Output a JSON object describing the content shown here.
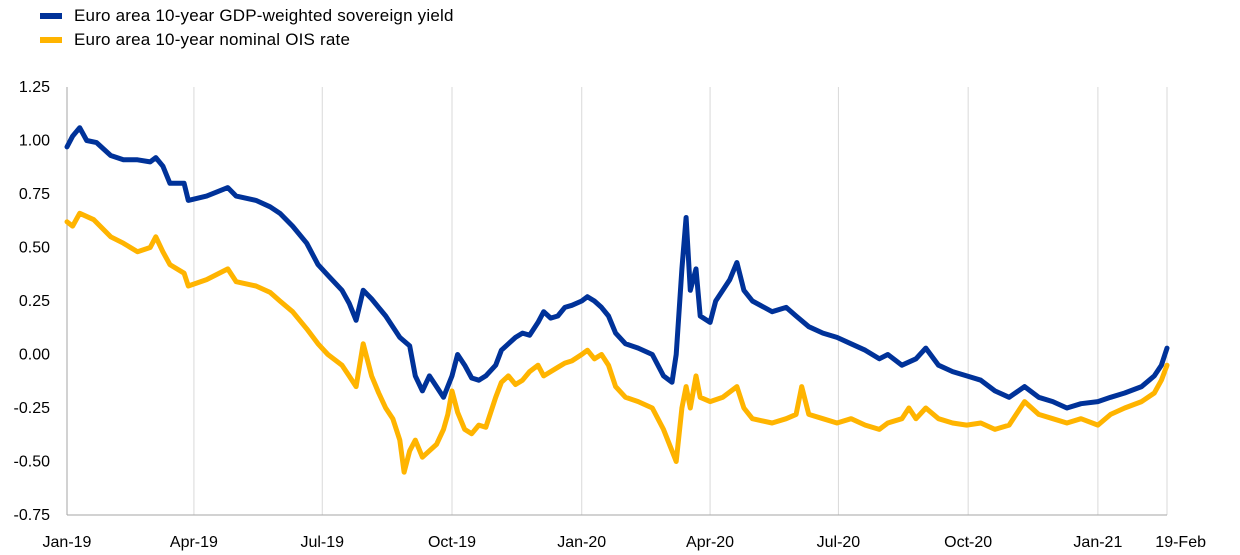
{
  "chart_data": {
    "type": "line",
    "title": "",
    "xlabel": "",
    "ylabel": "",
    "x_tick_labels": [
      {
        "label": "Jan-19",
        "date": "2019-01-01"
      },
      {
        "label": "Apr-19",
        "date": "2019-04-01"
      },
      {
        "label": "Jul-19",
        "date": "2019-07-01"
      },
      {
        "label": "Oct-19",
        "date": "2019-10-01"
      },
      {
        "label": "Jan-20",
        "date": "2020-01-01"
      },
      {
        "label": "Apr-20",
        "date": "2020-04-01"
      },
      {
        "label": "Jul-20",
        "date": "2020-07-01"
      },
      {
        "label": "Oct-20",
        "date": "2020-10-01"
      },
      {
        "label": "Jan-21",
        "date": "2021-01-01"
      },
      {
        "label": "19-Feb",
        "date": "2021-02-19"
      }
    ],
    "y_ticks": [
      "1.25",
      "1.00",
      "0.75",
      "0.50",
      "0.25",
      "0.00",
      "-0.25",
      "-0.50",
      "-0.75"
    ],
    "ylim": [
      -0.75,
      1.25
    ],
    "xlim": [
      "2019-01-01",
      "2021-02-19"
    ],
    "grid": "vertical",
    "legend_position": "top-left",
    "series": [
      {
        "name": "Euro area 10-year GDP-weighted sovereign yield",
        "color": "#003299",
        "points": [
          [
            "2019-01-01",
            0.97
          ],
          [
            "2019-01-05",
            1.02
          ],
          [
            "2019-01-10",
            1.06
          ],
          [
            "2019-01-15",
            1.0
          ],
          [
            "2019-01-22",
            0.99
          ],
          [
            "2019-02-01",
            0.93
          ],
          [
            "2019-02-10",
            0.91
          ],
          [
            "2019-02-20",
            0.91
          ],
          [
            "2019-03-01",
            0.9
          ],
          [
            "2019-03-05",
            0.92
          ],
          [
            "2019-03-10",
            0.88
          ],
          [
            "2019-03-15",
            0.8
          ],
          [
            "2019-03-25",
            0.8
          ],
          [
            "2019-03-28",
            0.72
          ],
          [
            "2019-04-10",
            0.74
          ],
          [
            "2019-04-25",
            0.78
          ],
          [
            "2019-05-01",
            0.74
          ],
          [
            "2019-05-15",
            0.72
          ],
          [
            "2019-05-25",
            0.69
          ],
          [
            "2019-06-01",
            0.66
          ],
          [
            "2019-06-10",
            0.6
          ],
          [
            "2019-06-20",
            0.52
          ],
          [
            "2019-06-28",
            0.42
          ],
          [
            "2019-07-05",
            0.37
          ],
          [
            "2019-07-15",
            0.3
          ],
          [
            "2019-07-20",
            0.24
          ],
          [
            "2019-07-25",
            0.16
          ],
          [
            "2019-07-30",
            0.3
          ],
          [
            "2019-08-05",
            0.26
          ],
          [
            "2019-08-15",
            0.18
          ],
          [
            "2019-08-25",
            0.08
          ],
          [
            "2019-09-01",
            0.04
          ],
          [
            "2019-09-05",
            -0.1
          ],
          [
            "2019-09-10",
            -0.17
          ],
          [
            "2019-09-15",
            -0.1
          ],
          [
            "2019-09-20",
            -0.15
          ],
          [
            "2019-09-25",
            -0.2
          ],
          [
            "2019-10-01",
            -0.1
          ],
          [
            "2019-10-05",
            0.0
          ],
          [
            "2019-10-10",
            -0.05
          ],
          [
            "2019-10-15",
            -0.11
          ],
          [
            "2019-10-20",
            -0.12
          ],
          [
            "2019-10-25",
            -0.1
          ],
          [
            "2019-11-01",
            -0.05
          ],
          [
            "2019-11-05",
            0.02
          ],
          [
            "2019-11-10",
            0.05
          ],
          [
            "2019-11-15",
            0.08
          ],
          [
            "2019-11-20",
            0.1
          ],
          [
            "2019-11-25",
            0.09
          ],
          [
            "2019-12-01",
            0.15
          ],
          [
            "2019-12-05",
            0.2
          ],
          [
            "2019-12-10",
            0.17
          ],
          [
            "2019-12-15",
            0.18
          ],
          [
            "2019-12-20",
            0.22
          ],
          [
            "2019-12-25",
            0.23
          ],
          [
            "2020-01-01",
            0.25
          ],
          [
            "2020-01-05",
            0.27
          ],
          [
            "2020-01-10",
            0.25
          ],
          [
            "2020-01-15",
            0.22
          ],
          [
            "2020-01-20",
            0.18
          ],
          [
            "2020-01-25",
            0.1
          ],
          [
            "2020-02-01",
            0.05
          ],
          [
            "2020-02-10",
            0.03
          ],
          [
            "2020-02-20",
            0.0
          ],
          [
            "2020-02-28",
            -0.1
          ],
          [
            "2020-03-05",
            -0.13
          ],
          [
            "2020-03-08",
            0.0
          ],
          [
            "2020-03-12",
            0.4
          ],
          [
            "2020-03-15",
            0.64
          ],
          [
            "2020-03-18",
            0.3
          ],
          [
            "2020-03-22",
            0.4
          ],
          [
            "2020-03-25",
            0.18
          ],
          [
            "2020-04-01",
            0.15
          ],
          [
            "2020-04-05",
            0.25
          ],
          [
            "2020-04-10",
            0.3
          ],
          [
            "2020-04-15",
            0.35
          ],
          [
            "2020-04-20",
            0.43
          ],
          [
            "2020-04-25",
            0.3
          ],
          [
            "2020-05-01",
            0.25
          ],
          [
            "2020-05-15",
            0.2
          ],
          [
            "2020-05-25",
            0.22
          ],
          [
            "2020-06-01",
            0.18
          ],
          [
            "2020-06-10",
            0.13
          ],
          [
            "2020-06-20",
            0.1
          ],
          [
            "2020-06-30",
            0.08
          ],
          [
            "2020-07-10",
            0.05
          ],
          [
            "2020-07-20",
            0.02
          ],
          [
            "2020-07-30",
            -0.02
          ],
          [
            "2020-08-05",
            0.0
          ],
          [
            "2020-08-15",
            -0.05
          ],
          [
            "2020-08-25",
            -0.02
          ],
          [
            "2020-09-01",
            0.03
          ],
          [
            "2020-09-10",
            -0.05
          ],
          [
            "2020-09-20",
            -0.08
          ],
          [
            "2020-09-30",
            -0.1
          ],
          [
            "2020-10-10",
            -0.12
          ],
          [
            "2020-10-20",
            -0.17
          ],
          [
            "2020-10-30",
            -0.2
          ],
          [
            "2020-11-10",
            -0.15
          ],
          [
            "2020-11-20",
            -0.2
          ],
          [
            "2020-11-30",
            -0.22
          ],
          [
            "2020-12-10",
            -0.25
          ],
          [
            "2020-12-20",
            -0.23
          ],
          [
            "2021-01-01",
            -0.22
          ],
          [
            "2021-01-10",
            -0.2
          ],
          [
            "2021-01-20",
            -0.18
          ],
          [
            "2021-02-01",
            -0.15
          ],
          [
            "2021-02-10",
            -0.1
          ],
          [
            "2021-02-15",
            -0.05
          ],
          [
            "2021-02-19",
            0.03
          ]
        ]
      },
      {
        "name": "Euro area 10-year nominal OIS rate",
        "color": "#FFB400",
        "points": [
          [
            "2019-01-01",
            0.62
          ],
          [
            "2019-01-05",
            0.6
          ],
          [
            "2019-01-10",
            0.66
          ],
          [
            "2019-01-20",
            0.63
          ],
          [
            "2019-02-01",
            0.55
          ],
          [
            "2019-02-10",
            0.52
          ],
          [
            "2019-02-20",
            0.48
          ],
          [
            "2019-03-01",
            0.5
          ],
          [
            "2019-03-05",
            0.55
          ],
          [
            "2019-03-10",
            0.48
          ],
          [
            "2019-03-15",
            0.42
          ],
          [
            "2019-03-25",
            0.38
          ],
          [
            "2019-03-28",
            0.32
          ],
          [
            "2019-04-10",
            0.35
          ],
          [
            "2019-04-25",
            0.4
          ],
          [
            "2019-05-01",
            0.34
          ],
          [
            "2019-05-15",
            0.32
          ],
          [
            "2019-05-25",
            0.29
          ],
          [
            "2019-06-01",
            0.25
          ],
          [
            "2019-06-10",
            0.2
          ],
          [
            "2019-06-20",
            0.12
          ],
          [
            "2019-06-28",
            0.05
          ],
          [
            "2019-07-05",
            0.0
          ],
          [
            "2019-07-15",
            -0.05
          ],
          [
            "2019-07-20",
            -0.1
          ],
          [
            "2019-07-25",
            -0.15
          ],
          [
            "2019-07-30",
            0.05
          ],
          [
            "2019-08-05",
            -0.1
          ],
          [
            "2019-08-10",
            -0.18
          ],
          [
            "2019-08-15",
            -0.25
          ],
          [
            "2019-08-20",
            -0.3
          ],
          [
            "2019-08-25",
            -0.4
          ],
          [
            "2019-08-28",
            -0.55
          ],
          [
            "2019-09-01",
            -0.45
          ],
          [
            "2019-09-05",
            -0.4
          ],
          [
            "2019-09-10",
            -0.48
          ],
          [
            "2019-09-15",
            -0.45
          ],
          [
            "2019-09-20",
            -0.42
          ],
          [
            "2019-09-25",
            -0.35
          ],
          [
            "2019-09-28",
            -0.28
          ],
          [
            "2019-10-01",
            -0.17
          ],
          [
            "2019-10-05",
            -0.27
          ],
          [
            "2019-10-10",
            -0.35
          ],
          [
            "2019-10-15",
            -0.37
          ],
          [
            "2019-10-20",
            -0.33
          ],
          [
            "2019-10-25",
            -0.34
          ],
          [
            "2019-11-01",
            -0.2
          ],
          [
            "2019-11-05",
            -0.13
          ],
          [
            "2019-11-10",
            -0.1
          ],
          [
            "2019-11-15",
            -0.14
          ],
          [
            "2019-11-20",
            -0.12
          ],
          [
            "2019-11-25",
            -0.08
          ],
          [
            "2019-12-01",
            -0.05
          ],
          [
            "2019-12-05",
            -0.1
          ],
          [
            "2019-12-10",
            -0.08
          ],
          [
            "2019-12-15",
            -0.06
          ],
          [
            "2019-12-20",
            -0.04
          ],
          [
            "2019-12-25",
            -0.03
          ],
          [
            "2020-01-01",
            0.0
          ],
          [
            "2020-01-05",
            0.02
          ],
          [
            "2020-01-10",
            -0.02
          ],
          [
            "2020-01-15",
            0.0
          ],
          [
            "2020-01-20",
            -0.05
          ],
          [
            "2020-01-25",
            -0.15
          ],
          [
            "2020-02-01",
            -0.2
          ],
          [
            "2020-02-10",
            -0.22
          ],
          [
            "2020-02-20",
            -0.25
          ],
          [
            "2020-02-28",
            -0.35
          ],
          [
            "2020-03-05",
            -0.45
          ],
          [
            "2020-03-08",
            -0.5
          ],
          [
            "2020-03-12",
            -0.25
          ],
          [
            "2020-03-15",
            -0.15
          ],
          [
            "2020-03-18",
            -0.25
          ],
          [
            "2020-03-22",
            -0.1
          ],
          [
            "2020-03-25",
            -0.2
          ],
          [
            "2020-04-01",
            -0.22
          ],
          [
            "2020-04-10",
            -0.2
          ],
          [
            "2020-04-20",
            -0.15
          ],
          [
            "2020-04-25",
            -0.25
          ],
          [
            "2020-05-01",
            -0.3
          ],
          [
            "2020-05-15",
            -0.32
          ],
          [
            "2020-05-25",
            -0.3
          ],
          [
            "2020-06-01",
            -0.28
          ],
          [
            "2020-06-05",
            -0.15
          ],
          [
            "2020-06-10",
            -0.28
          ],
          [
            "2020-06-20",
            -0.3
          ],
          [
            "2020-06-30",
            -0.32
          ],
          [
            "2020-07-10",
            -0.3
          ],
          [
            "2020-07-20",
            -0.33
          ],
          [
            "2020-07-30",
            -0.35
          ],
          [
            "2020-08-05",
            -0.32
          ],
          [
            "2020-08-15",
            -0.3
          ],
          [
            "2020-08-20",
            -0.25
          ],
          [
            "2020-08-25",
            -0.3
          ],
          [
            "2020-09-01",
            -0.25
          ],
          [
            "2020-09-10",
            -0.3
          ],
          [
            "2020-09-20",
            -0.32
          ],
          [
            "2020-09-30",
            -0.33
          ],
          [
            "2020-10-10",
            -0.32
          ],
          [
            "2020-10-20",
            -0.35
          ],
          [
            "2020-10-30",
            -0.33
          ],
          [
            "2020-11-10",
            -0.22
          ],
          [
            "2020-11-20",
            -0.28
          ],
          [
            "2020-11-30",
            -0.3
          ],
          [
            "2020-12-10",
            -0.32
          ],
          [
            "2020-12-20",
            -0.3
          ],
          [
            "2021-01-01",
            -0.33
          ],
          [
            "2021-01-10",
            -0.28
          ],
          [
            "2021-01-20",
            -0.25
          ],
          [
            "2021-02-01",
            -0.22
          ],
          [
            "2021-02-10",
            -0.18
          ],
          [
            "2021-02-15",
            -0.12
          ],
          [
            "2021-02-19",
            -0.05
          ]
        ]
      }
    ]
  }
}
